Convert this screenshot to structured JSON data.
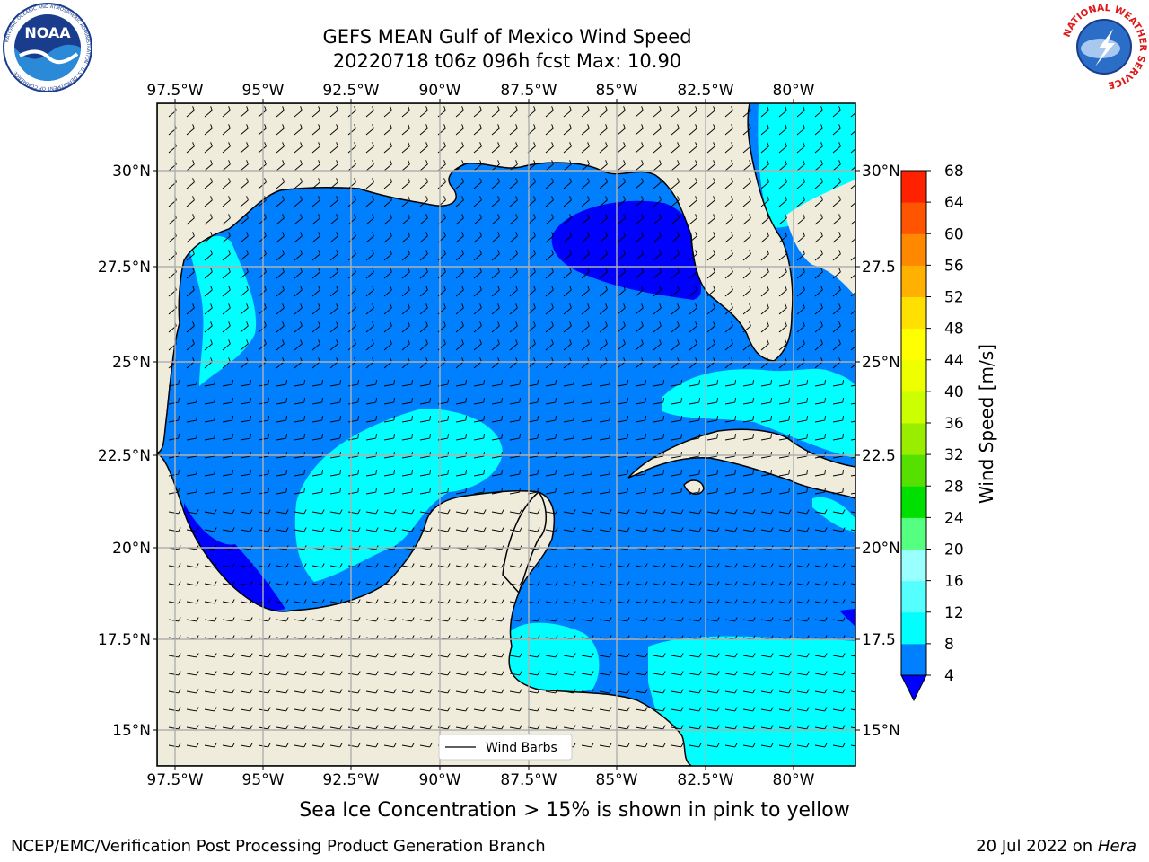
{
  "title": {
    "line1": "GEFS MEAN Gulf of Mexico Wind Speed",
    "line2": "20220718 t06z 096h fcst   Max: 10.90"
  },
  "logos": {
    "noaa": {
      "text": "NOAA",
      "ring_text": "NATIONAL OCEANIC AND ATMOSPHERIC ADMINISTRATION · U.S. DEPARTMENT OF COMMERCE"
    },
    "nws": {
      "ring_text": "NATIONAL WEATHER SERVICE"
    }
  },
  "map": {
    "projection": "lat-lon",
    "lon_ticks": [
      "97.5°W",
      "95°W",
      "92.5°W",
      "90°W",
      "87.5°W",
      "85°W",
      "82.5°W",
      "80°W"
    ],
    "lat_ticks_left": [
      "30°N",
      "27.5°N",
      "25°N",
      "22.5°N",
      "20°N",
      "17.5°N",
      "15°N"
    ],
    "lat_ticks_right": [
      "30°N",
      "27.5",
      "25°N",
      "22.5",
      "20°N",
      "17.5",
      "15°N"
    ],
    "legend_label": "Wind Barbs",
    "colors": {
      "land": "#efecdc",
      "ocean_4_8": "#0080ff",
      "ocean_8_12": "#00ffff",
      "ocean_lt4": "#0000ff",
      "grid": "#b0b0b0"
    }
  },
  "colorbar": {
    "label": "Wind Speed [m/s]",
    "levels": [
      "4",
      "8",
      "12",
      "16",
      "20",
      "24",
      "28",
      "32",
      "36",
      "40",
      "44",
      "48",
      "52",
      "56",
      "60",
      "64",
      "68"
    ],
    "colors": [
      "#0080ff",
      "#00ffff",
      "#55ffff",
      "#99ffff",
      "#55ff80",
      "#00e000",
      "#55e000",
      "#99ee00",
      "#ccff00",
      "#eeff00",
      "#ffff00",
      "#ffe000",
      "#ffb000",
      "#ff8800",
      "#ff5500",
      "#ff2200"
    ],
    "under_color": "#0000ff"
  },
  "footer": {
    "sea_ice_note": "Sea Ice Concentration > 15% is shown in pink to yellow",
    "credit": "NCEP/EMC/Verification Post Processing Product Generation Branch",
    "date": "20 Jul 2022 on ",
    "machine": "Hera"
  }
}
